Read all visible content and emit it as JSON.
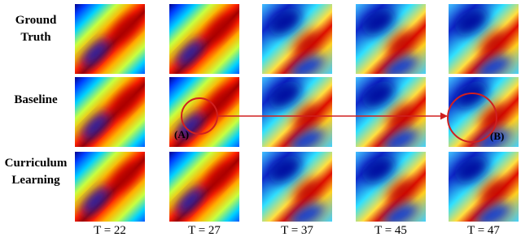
{
  "rows": [
    "Ground Truth",
    "Baseline",
    "Curriculum Learning"
  ],
  "columns": [
    "T = 22",
    "T = 27",
    "T = 37",
    "T = 45",
    "T = 47"
  ],
  "annotations": [
    "(A)",
    "(B)"
  ]
}
